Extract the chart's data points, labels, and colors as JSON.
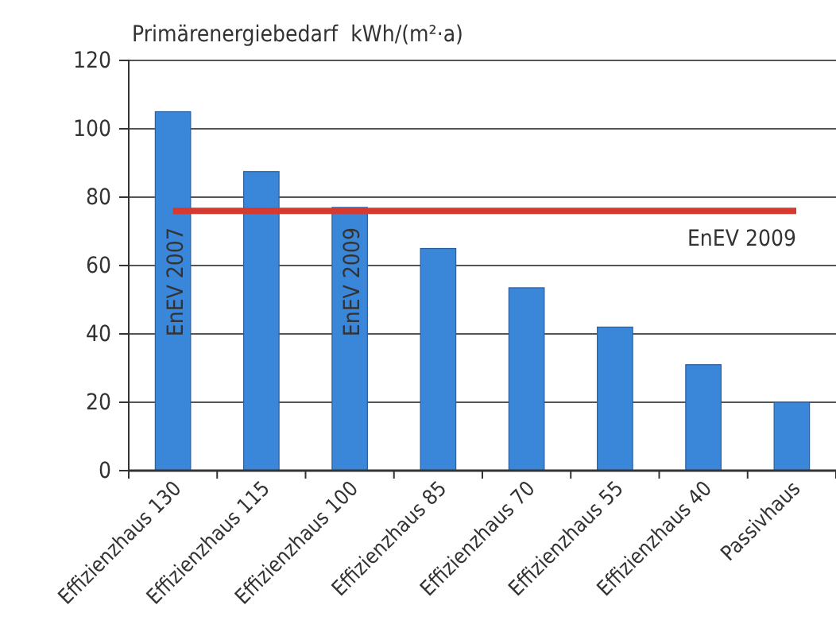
{
  "chart_data": {
    "type": "bar",
    "ylabel": "Primärenergiebedarf  kWh/(m²·a)",
    "categories": [
      "Effizienzhaus 130",
      "Effizienzhaus 115",
      "Effizienzhaus 100",
      "Effizienzhaus 85",
      "Effizienzhaus 70",
      "Effizienzhaus 55",
      "Effizienzhaus 40",
      "Passivhaus"
    ],
    "values": [
      105,
      87.5,
      77,
      65,
      53.5,
      42,
      31,
      20
    ],
    "color": "#3a86d8",
    "ylim": [
      0,
      120
    ],
    "yticks": [
      0,
      20,
      40,
      60,
      80,
      100,
      120
    ],
    "grid": "y",
    "ref_lines": [
      {
        "axis": "y",
        "value": 76,
        "label": "EnEV 2009",
        "color": "#d43a2f"
      }
    ],
    "annotations": [
      "EnEV 2007",
      "EnEV 2009"
    ]
  }
}
